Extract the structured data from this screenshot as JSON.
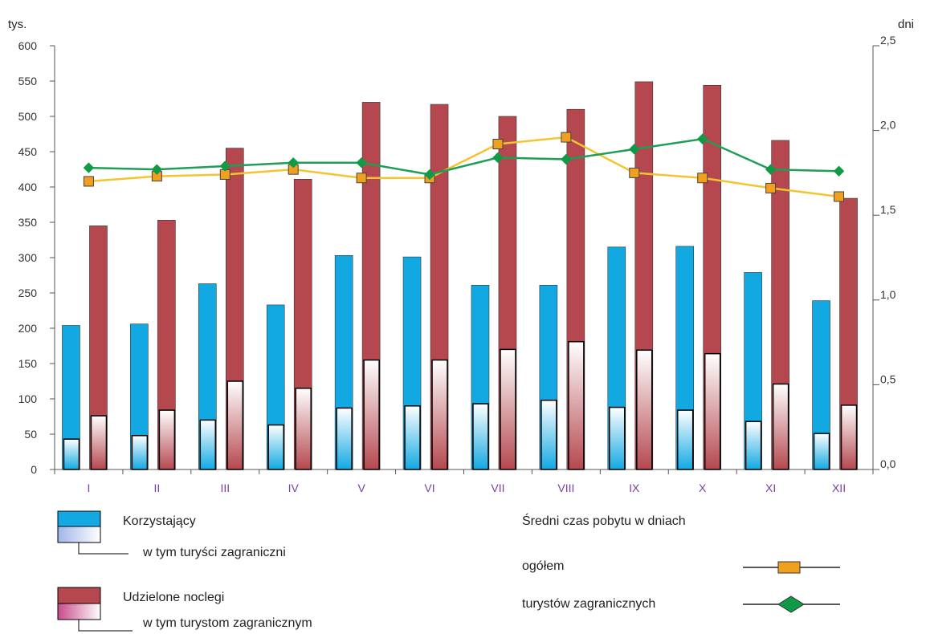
{
  "chart_data": {
    "type": "bar",
    "categories": [
      "I",
      "II",
      "III",
      "IV",
      "V",
      "VI",
      "VII",
      "VIII",
      "IX",
      "X",
      "XI",
      "XII"
    ],
    "y_left": {
      "unit_label": "tys.",
      "min": 0,
      "max": 600,
      "step": 50,
      "tick_labels": [
        "0",
        "50",
        "100",
        "150",
        "200",
        "250",
        "300",
        "350",
        "400",
        "450",
        "500",
        "550",
        "600"
      ]
    },
    "y_right": {
      "unit_label": "dni",
      "min": 0,
      "max": 2.5,
      "step": 0.5,
      "tick_labels": [
        "0,0",
        "0,5",
        "1,0",
        "1,5",
        "2,0",
        "2,5"
      ]
    },
    "bar_series": [
      {
        "name": "Korzystający",
        "axis": "left",
        "values": [
          204,
          206,
          263,
          233,
          303,
          301,
          261,
          261,
          315,
          316,
          279,
          239
        ]
      },
      {
        "name": "w tym turyści zagraniczni",
        "axis": "left",
        "values": [
          43,
          48,
          70,
          63,
          87,
          90,
          93,
          98,
          88,
          84,
          68,
          51
        ]
      },
      {
        "name": "Udzielone noclegi",
        "axis": "left",
        "values": [
          345,
          353,
          455,
          411,
          520,
          517,
          500,
          510,
          549,
          544,
          466,
          384
        ]
      },
      {
        "name": "w tym turystom zagranicznym",
        "axis": "left",
        "values": [
          76,
          84,
          125,
          115,
          155,
          155,
          170,
          181,
          169,
          164,
          121,
          91
        ]
      }
    ],
    "line_series": [
      {
        "name": "ogółem",
        "axis": "right",
        "values": [
          1.7,
          1.73,
          1.74,
          1.77,
          1.72,
          1.72,
          1.92,
          1.96,
          1.75,
          1.72,
          1.66,
          1.61
        ]
      },
      {
        "name": "turystów zagranicznych",
        "axis": "right",
        "values": [
          1.78,
          1.77,
          1.79,
          1.81,
          1.81,
          1.74,
          1.84,
          1.83,
          1.89,
          1.95,
          1.77,
          1.76
        ]
      }
    ],
    "colors": {
      "korzystajacy": "#12a9e2",
      "noclegi": "#b5484f",
      "ogolem_line": "#f4c430",
      "ogolem_marker": "#f0a01e",
      "zagraniczni_line": "#1e9e57",
      "zagraniczni_marker": "#109a48",
      "axis": "#555555"
    }
  },
  "legend": {
    "korzystajacy": "Korzystający",
    "turysci_zagraniczni": "w tym turyści zagraniczni",
    "noclegi": "Udzielone noclegi",
    "turystom_zagranicznym": "w tym turystom zagranicznym",
    "line_heading": "Średni czas pobytu w dniach",
    "ogolem": "ogółem",
    "turystow_zagranicznych": "turystów zagranicznych"
  }
}
